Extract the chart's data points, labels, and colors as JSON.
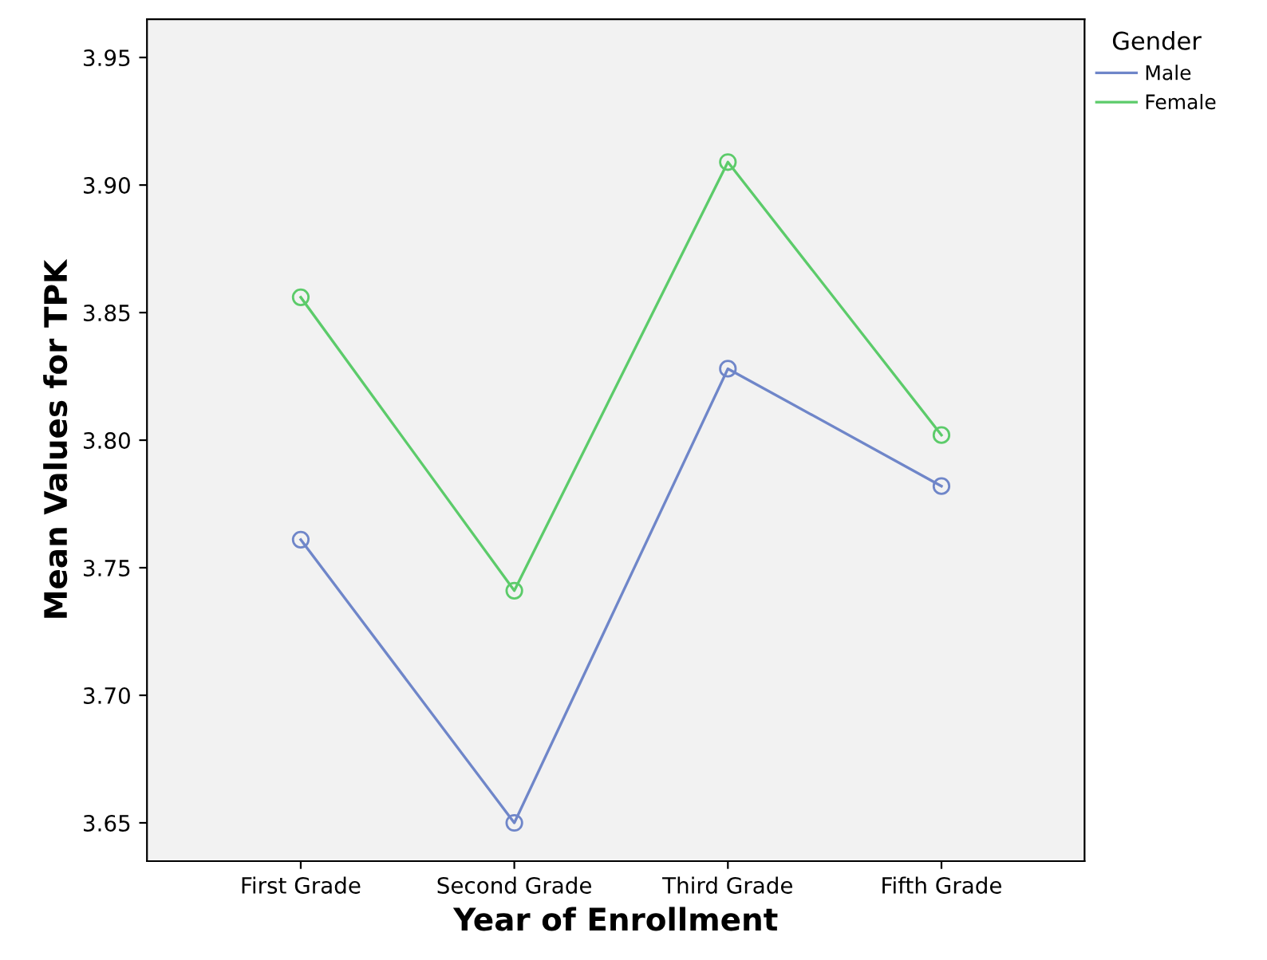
{
  "chart_data": {
    "type": "line",
    "xlabel": "Year of Enrollment",
    "ylabel": "Mean Values for TPK",
    "legend_title": "Gender",
    "categories": [
      "First Grade",
      "Second Grade",
      "Third Grade",
      "Fifth Grade"
    ],
    "series": [
      {
        "name": "Male",
        "color": "#6f86c9",
        "values": [
          3.761,
          3.65,
          3.828,
          3.782
        ]
      },
      {
        "name": "Female",
        "color": "#5ccb6a",
        "values": [
          3.856,
          3.741,
          3.909,
          3.802
        ]
      }
    ],
    "ylim": [
      3.635,
      3.965
    ],
    "yticks": [
      {
        "value": 3.65,
        "label": "3.65"
      },
      {
        "value": 3.7,
        "label": "3.70"
      },
      {
        "value": 3.75,
        "label": "3.75"
      },
      {
        "value": 3.8,
        "label": "3.80"
      },
      {
        "value": 3.85,
        "label": "3.85"
      },
      {
        "value": 3.9,
        "label": "3.90"
      },
      {
        "value": 3.95,
        "label": "3.95"
      }
    ],
    "grid": false,
    "legend": "top right",
    "marker": "circle",
    "line_style": "solid"
  }
}
